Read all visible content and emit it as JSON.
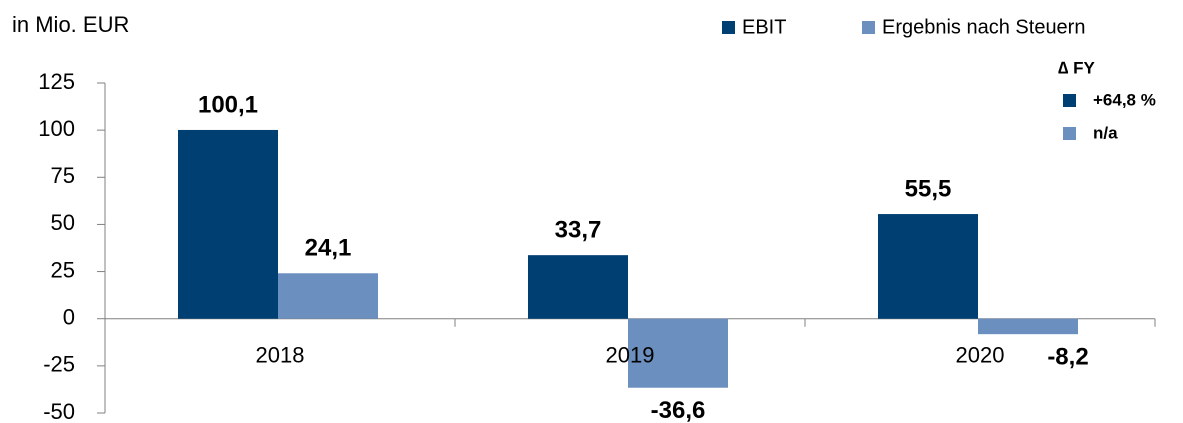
{
  "chart_data": {
    "type": "bar",
    "y_label": "in Mio. EUR",
    "categories": [
      "2018",
      "2019",
      "2020"
    ],
    "series": [
      {
        "name": "EBIT",
        "color": "#003f72",
        "values": [
          100.1,
          33.7,
          55.5
        ],
        "value_labels": [
          "100,1",
          "33,7",
          "55,5"
        ]
      },
      {
        "name": "Ergebnis nach Steuern",
        "color": "#6b8fbf",
        "values": [
          24.1,
          -36.6,
          -8.2
        ],
        "value_labels": [
          "24,1",
          "-36,6",
          "-8,2"
        ]
      }
    ],
    "ylim": [
      -50,
      125
    ],
    "yticks": [
      -50,
      -25,
      0,
      25,
      50,
      75,
      100,
      125
    ],
    "annotation_title": "∆ FY",
    "annotations": [
      "+64,8 %",
      "n/a"
    ]
  }
}
